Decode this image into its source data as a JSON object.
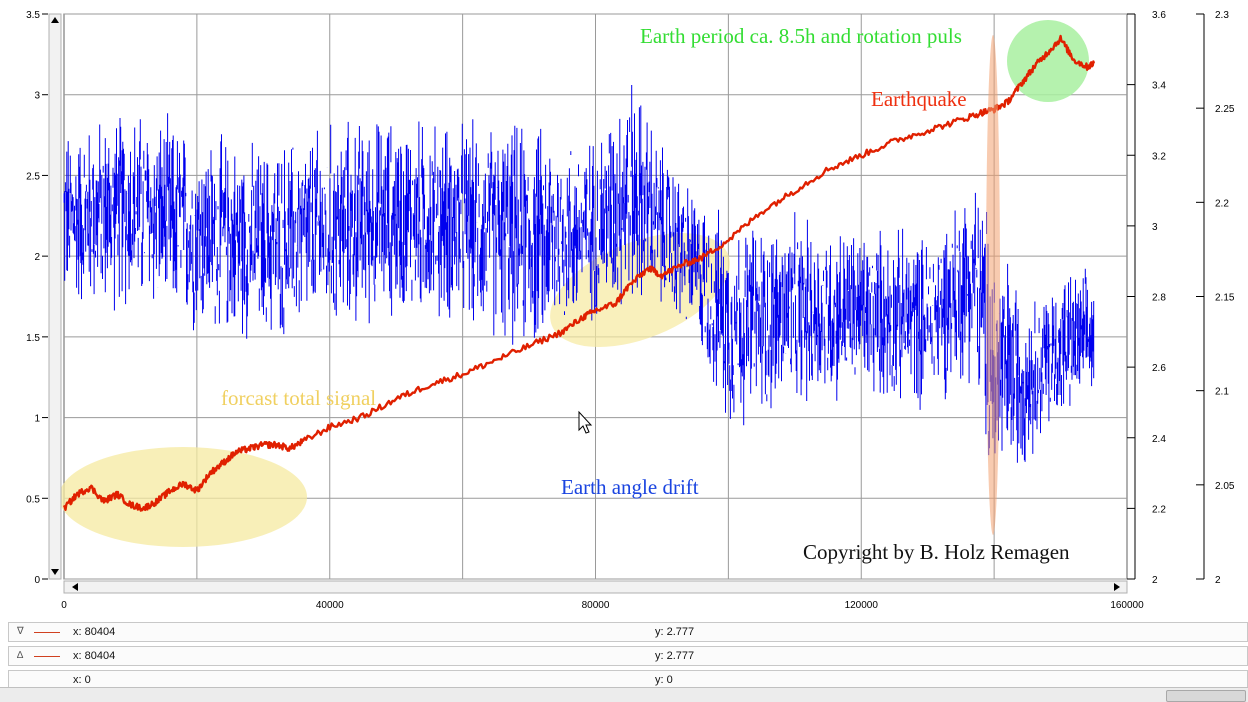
{
  "chart_data": {
    "type": "line",
    "x_axis": {
      "range": [
        0,
        160000
      ],
      "ticks": [
        "0",
        "40000",
        "80000",
        "120000",
        "160000"
      ]
    },
    "y_axis_left": {
      "range": [
        0,
        3.5
      ],
      "ticks": [
        "0",
        "0.5",
        "1",
        "1.5",
        "2",
        "2.5",
        "3",
        "3.5"
      ]
    },
    "y_axis_right1": {
      "range": [
        2,
        3.6
      ],
      "ticks": [
        "2",
        "2.2",
        "2.4",
        "2.6",
        "2.8",
        "3",
        "3.2",
        "3.4",
        "3.6"
      ]
    },
    "y_axis_right2": {
      "range": [
        2,
        2.3
      ],
      "ticks": [
        "2",
        "2.05",
        "2.1",
        "2.15",
        "2.2",
        "2.25",
        "2.3"
      ]
    },
    "grid": true,
    "series": [
      {
        "color": "#0000ee",
        "axis": "left",
        "envelope": [
          {
            "x": 0,
            "low": 1.6,
            "high": 2.85
          },
          {
            "x": 10000,
            "low": 1.6,
            "high": 3.0
          },
          {
            "x": 20000,
            "low": 1.45,
            "high": 2.85
          },
          {
            "x": 30000,
            "low": 1.4,
            "high": 2.75
          },
          {
            "x": 40000,
            "low": 1.45,
            "high": 2.9
          },
          {
            "x": 50000,
            "low": 1.55,
            "high": 2.95
          },
          {
            "x": 60000,
            "low": 1.5,
            "high": 2.9
          },
          {
            "x": 70000,
            "low": 1.3,
            "high": 2.9
          },
          {
            "x": 80000,
            "low": 1.55,
            "high": 2.8
          },
          {
            "x": 85000,
            "low": 1.6,
            "high": 3.25
          },
          {
            "x": 90000,
            "low": 1.6,
            "high": 2.75
          },
          {
            "x": 95000,
            "low": 1.4,
            "high": 2.45
          },
          {
            "x": 100000,
            "low": 0.85,
            "high": 2.3
          },
          {
            "x": 110000,
            "low": 1.0,
            "high": 2.3
          },
          {
            "x": 120000,
            "low": 1.05,
            "high": 2.25
          },
          {
            "x": 130000,
            "low": 1.0,
            "high": 2.2
          },
          {
            "x": 137000,
            "low": 1.2,
            "high": 2.6
          },
          {
            "x": 140000,
            "low": 0.3,
            "high": 2.3
          },
          {
            "x": 145000,
            "low": 0.7,
            "high": 1.8
          },
          {
            "x": 150000,
            "low": 0.9,
            "high": 1.95
          },
          {
            "x": 155000,
            "low": 1.05,
            "high": 1.95
          }
        ]
      },
      {
        "color": "#e02000",
        "axis": "right1",
        "x": [
          0,
          2000,
          4000,
          6000,
          8000,
          10000,
          12000,
          14000,
          16000,
          18000,
          20000,
          22000,
          24000,
          26000,
          28000,
          30000,
          32000,
          34000,
          36000,
          40000,
          45000,
          50000,
          55000,
          60000,
          65000,
          70000,
          75000,
          78000,
          80000,
          83000,
          85000,
          88000,
          90000,
          93000,
          96000,
          100000,
          105000,
          110000,
          115000,
          120000,
          125000,
          130000,
          135000,
          138000,
          140000,
          142000,
          144000,
          146000,
          148000,
          150000,
          152000,
          154000,
          155000
        ],
        "y": [
          2.2,
          2.24,
          2.26,
          2.22,
          2.24,
          2.21,
          2.2,
          2.22,
          2.25,
          2.27,
          2.25,
          2.3,
          2.33,
          2.36,
          2.37,
          2.38,
          2.38,
          2.37,
          2.39,
          2.43,
          2.46,
          2.51,
          2.55,
          2.58,
          2.62,
          2.66,
          2.7,
          2.74,
          2.76,
          2.78,
          2.83,
          2.88,
          2.86,
          2.89,
          2.91,
          2.96,
          3.04,
          3.1,
          3.16,
          3.2,
          3.24,
          3.27,
          3.3,
          3.32,
          3.33,
          3.35,
          3.4,
          3.45,
          3.49,
          3.53,
          3.47,
          3.45,
          3.46
        ]
      }
    ],
    "annotations": [
      {
        "text": "Earth period ca. 8.5h and rotation puls",
        "color": "#33dd33"
      },
      {
        "text": "Earthquake",
        "color": "#ee3010"
      },
      {
        "text": "forcast total signal",
        "color": "#f0d060"
      },
      {
        "text": "Earth angle drift",
        "color": "#1a44e0"
      },
      {
        "text": "Copyright by B. Holz Remagen",
        "color": "#111111"
      }
    ]
  },
  "cursors": [
    {
      "marker": "∇",
      "x_label": "x: 80404",
      "y_label": "y: 2.777",
      "color": "#d04020"
    },
    {
      "marker": "∆",
      "x_label": "x: 80404",
      "y_label": "y: 2.777",
      "color": "#d04020"
    },
    {
      "marker": "",
      "x_label": "x: 0",
      "y_label": "y: 0",
      "color": ""
    }
  ]
}
